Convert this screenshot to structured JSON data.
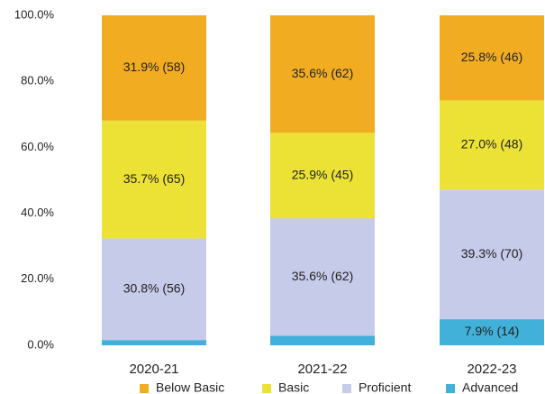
{
  "chart_data": {
    "type": "stacked-bar",
    "categories": [
      "2020-21",
      "2021-22",
      "2022-23"
    ],
    "series": [
      {
        "name": "Below Basic",
        "color": "#f2ac22",
        "values": [
          31.9,
          35.6,
          25.8
        ],
        "value_labels": [
          "31.9% (58)",
          "35.6% (62)",
          "25.8% (46)"
        ]
      },
      {
        "name": "Basic",
        "color": "#ece236",
        "values": [
          35.7,
          25.9,
          27.0
        ],
        "value_labels": [
          "35.7% (65)",
          "25.9% (45)",
          "27.0% (48)"
        ]
      },
      {
        "name": "Proficient",
        "color": "#c6cbea",
        "values": [
          30.8,
          35.6,
          39.3
        ],
        "value_labels": [
          "30.8% (56)",
          "35.6% (62)",
          "39.3% (70)"
        ]
      },
      {
        "name": "Advanced",
        "color": "#41b1d9",
        "values": [
          1.6,
          2.9,
          7.9
        ],
        "value_labels": [
          null,
          null,
          "7.9% (14)"
        ]
      }
    ],
    "ylim": [
      0,
      100
    ],
    "yticks": [
      {
        "value": 0,
        "label": "0.0%"
      },
      {
        "value": 20,
        "label": "20.0%"
      },
      {
        "value": 40,
        "label": "40.0%"
      },
      {
        "value": 60,
        "label": "60.0%"
      },
      {
        "value": 80,
        "label": "80.0%"
      },
      {
        "value": 100,
        "label": "100.0%"
      }
    ],
    "grid": false,
    "legend": "bottom"
  }
}
